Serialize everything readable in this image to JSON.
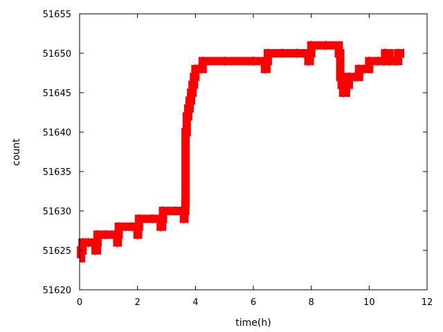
{
  "chart_data": {
    "type": "line",
    "title": "",
    "xlabel": "time(h)",
    "ylabel": "count",
    "xlim": [
      0,
      12
    ],
    "ylim": [
      51620,
      51655
    ],
    "xticks": [
      0,
      2,
      4,
      6,
      8,
      10,
      12
    ],
    "yticks": [
      51620,
      51625,
      51630,
      51635,
      51640,
      51645,
      51650,
      51655
    ],
    "grid": false,
    "legend": "none",
    "series": [
      {
        "color": "#ff0000",
        "points": [
          [
            0.0,
            51624
          ],
          [
            0.05,
            51625
          ],
          [
            0.1,
            51626
          ],
          [
            0.3,
            51626
          ],
          [
            0.55,
            51625
          ],
          [
            0.6,
            51626
          ],
          [
            0.62,
            51627
          ],
          [
            0.9,
            51627
          ],
          [
            1.3,
            51626
          ],
          [
            1.32,
            51627
          ],
          [
            1.35,
            51628
          ],
          [
            1.8,
            51628
          ],
          [
            2.0,
            51627
          ],
          [
            2.02,
            51628
          ],
          [
            2.05,
            51629
          ],
          [
            2.5,
            51629
          ],
          [
            2.8,
            51628
          ],
          [
            2.85,
            51629
          ],
          [
            2.88,
            51630
          ],
          [
            3.3,
            51630
          ],
          [
            3.6,
            51629
          ],
          [
            3.62,
            51630
          ],
          [
            3.65,
            51631
          ],
          [
            3.66,
            51640
          ],
          [
            3.7,
            51642
          ],
          [
            3.75,
            51643
          ],
          [
            3.8,
            51644
          ],
          [
            3.85,
            51645
          ],
          [
            3.9,
            51646
          ],
          [
            3.95,
            51647
          ],
          [
            4.0,
            51648
          ],
          [
            4.1,
            51648
          ],
          [
            4.2,
            51648
          ],
          [
            4.25,
            51649
          ],
          [
            5.0,
            51649
          ],
          [
            6.0,
            51649
          ],
          [
            6.4,
            51648
          ],
          [
            6.45,
            51649
          ],
          [
            6.5,
            51650
          ],
          [
            7.0,
            51650
          ],
          [
            7.5,
            51650
          ],
          [
            7.9,
            51649
          ],
          [
            7.95,
            51650
          ],
          [
            8.0,
            51651
          ],
          [
            8.5,
            51651
          ],
          [
            8.95,
            51650
          ],
          [
            9.0,
            51647
          ],
          [
            9.05,
            51646
          ],
          [
            9.1,
            51645
          ],
          [
            9.2,
            51646
          ],
          [
            9.3,
            51647
          ],
          [
            9.5,
            51647
          ],
          [
            9.6,
            51647
          ],
          [
            9.65,
            51648
          ],
          [
            9.8,
            51648
          ],
          [
            10.0,
            51649
          ],
          [
            10.3,
            51649
          ],
          [
            10.5,
            51649
          ],
          [
            10.55,
            51650
          ],
          [
            10.7,
            51649
          ],
          [
            10.9,
            51649
          ],
          [
            11.0,
            51650
          ],
          [
            11.2,
            51650
          ]
        ]
      }
    ]
  }
}
